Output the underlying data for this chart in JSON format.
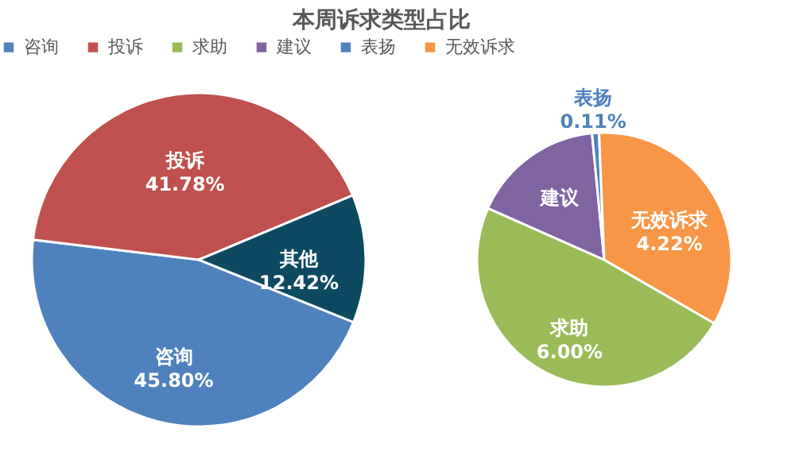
{
  "chart_data": [
    {
      "type": "pie",
      "title": "本周诉求类型占比",
      "legend": "top",
      "categories": [
        "咨询",
        "投诉",
        "其他"
      ],
      "values": [
        45.8,
        41.78,
        12.42
      ],
      "colors": [
        "#4f81bd",
        "#c0504d",
        "#0d4a62"
      ],
      "value_labels": [
        "45.80%",
        "41.78%",
        "12.42%"
      ]
    },
    {
      "type": "pie",
      "legend": "top",
      "categories": [
        "求助",
        "建议",
        "表扬",
        "无效诉求"
      ],
      "values": [
        6.0,
        2.09,
        0.11,
        4.22
      ],
      "colors": [
        "#9bbb59",
        "#8064a2",
        "#4f81bd",
        "#f79646"
      ],
      "value_labels": [
        "6.00%",
        null,
        "0.11%",
        "4.22%"
      ]
    }
  ]
}
